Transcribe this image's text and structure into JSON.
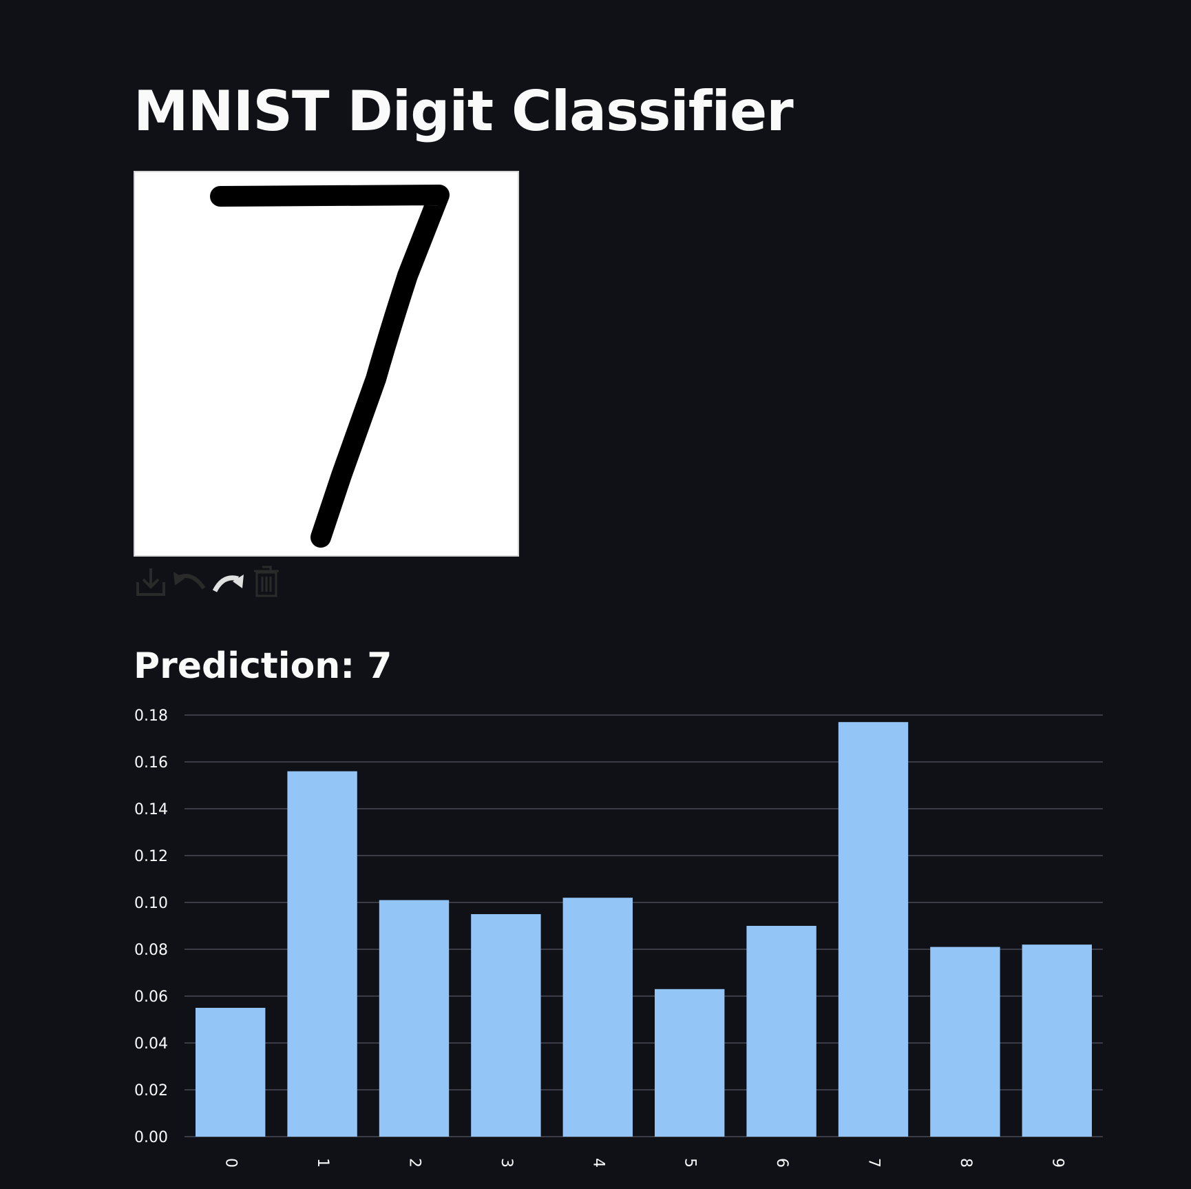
{
  "app": {
    "title": "MNIST Digit Classifier"
  },
  "canvas": {
    "drawn_digit": "7",
    "toolbar": [
      {
        "name": "download-icon",
        "label": "Download"
      },
      {
        "name": "undo-icon",
        "label": "Undo"
      },
      {
        "name": "redo-icon",
        "label": "Redo"
      },
      {
        "name": "trash-icon",
        "label": "Clear"
      }
    ]
  },
  "result": {
    "label": "Prediction:",
    "value": "7"
  },
  "colors": {
    "background": "#0f1117",
    "bar": "#93c5f7",
    "grid": "#3a3d46"
  },
  "chart_data": {
    "type": "bar",
    "categories": [
      "0",
      "1",
      "2",
      "3",
      "4",
      "5",
      "6",
      "7",
      "8",
      "9"
    ],
    "values": [
      0.055,
      0.156,
      0.101,
      0.095,
      0.102,
      0.063,
      0.09,
      0.177,
      0.081,
      0.082
    ],
    "yticks": [
      "0.00",
      "0.02",
      "0.04",
      "0.06",
      "0.08",
      "0.10",
      "0.12",
      "0.14",
      "0.16",
      "0.18"
    ],
    "ylim": [
      0,
      0.18
    ],
    "grid": true,
    "title": "",
    "xlabel": "",
    "ylabel": ""
  }
}
